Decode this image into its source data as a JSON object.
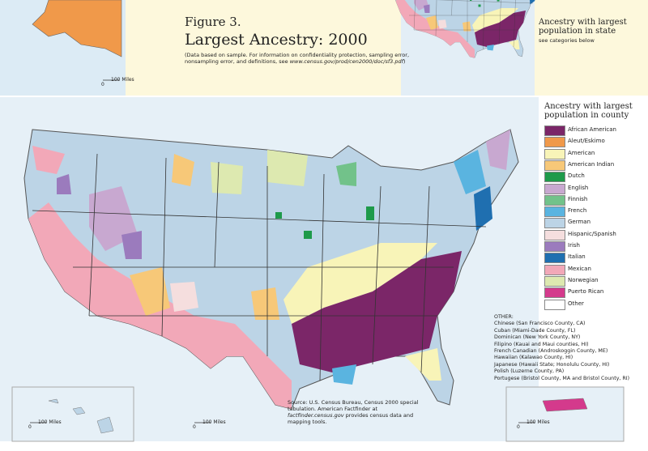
{
  "header": {
    "figure": "Figure 3.",
    "title": "Largest Ancestry: 2000",
    "note": "(Data based on sample. For information on confidentiality protection, sampling error, nonsampling error, and definitions, see ",
    "note_url": "www.census.gov/prod/cen2000/doc/sf3.pdf",
    "note_close": ")"
  },
  "state_inset": {
    "title": "Ancestry with largest population in state",
    "subtitle": "see categories below"
  },
  "legend": {
    "title": "Ancestry with largest population in county",
    "items": [
      {
        "label": "African American",
        "color": "#7b2668"
      },
      {
        "label": "Aleut/Eskimo",
        "color": "#f0994a"
      },
      {
        "label": "American",
        "color": "#f8f4b8"
      },
      {
        "label": "American Indian",
        "color": "#f7c878"
      },
      {
        "label": "Dutch",
        "color": "#1e9a4a"
      },
      {
        "label": "English",
        "color": "#c8a8d0"
      },
      {
        "label": "Finnish",
        "color": "#72c28a"
      },
      {
        "label": "French",
        "color": "#5ab4e0"
      },
      {
        "label": "German",
        "color": "#bcd4e6"
      },
      {
        "label": "Hispanic/Spanish",
        "color": "#f5dede"
      },
      {
        "label": "Irish",
        "color": "#9b7bbd"
      },
      {
        "label": "Italian",
        "color": "#1f6fb0"
      },
      {
        "label": "Mexican",
        "color": "#f2a8b8"
      },
      {
        "label": "Norwegian",
        "color": "#dde9b0"
      },
      {
        "label": "Puerto Rican",
        "color": "#d43a8c"
      },
      {
        "label": "Other",
        "color": "#ffffff"
      }
    ]
  },
  "other": {
    "heading": "OTHER:",
    "items": [
      "Chinese (San Francisco County, CA)",
      "Cuban (Miami-Dade County, FL)",
      "Dominican (New York County, NY)",
      "Filipino (Kauai and Maui counties, HI)",
      "French Canadian (Androskoggin County, ME)",
      "Hawaiian (Kalawao County, HI)",
      "Japanese (Hawaii State; Honolulu County, HI)",
      "Polish (Luzerne County, PA)",
      "Portugese (Bristol County, MA and Bristol County, RI)"
    ]
  },
  "source": {
    "text": "Source: U.S. Census Bureau, Census 2000 special tabulation. American Factfinder at ",
    "url": "factfinder.census.gov",
    "rest": " provides census data and mapping tools."
  },
  "scale_bars": [
    {
      "zero": "0",
      "label": "100 Miles"
    },
    {
      "zero": "0",
      "label": "100 Miles"
    },
    {
      "zero": "0",
      "label": "100 Miles"
    },
    {
      "zero": "0",
      "label": "100 Miles"
    }
  ]
}
